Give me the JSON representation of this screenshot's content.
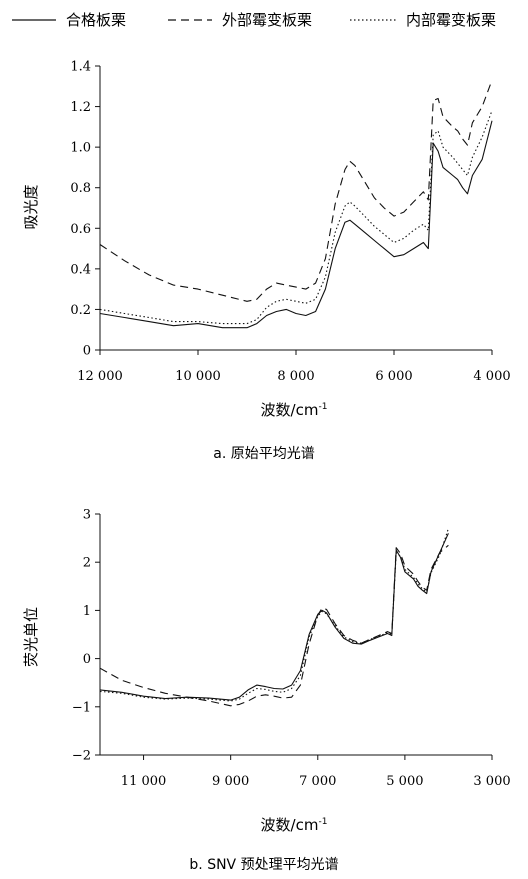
{
  "legend": {
    "items": [
      {
        "label": "合格板栗",
        "dash": "solid"
      },
      {
        "label": "外部霉变板栗",
        "dash": "dashed"
      },
      {
        "label": "内部霉变板栗",
        "dash": "dotted"
      }
    ]
  },
  "chart_data": [
    {
      "type": "line",
      "caption": "a. 原始平均光谱",
      "xlabel": "波数/cm",
      "xlabel_sup": "-1",
      "ylabel": "吸光度",
      "xlim": [
        12000,
        4000
      ],
      "ylim": [
        0,
        1.4
      ],
      "xticks": [
        12000,
        10000,
        8000,
        6000,
        4000
      ],
      "xtick_labels": [
        "12 000",
        "10 000",
        "8 000",
        "6 000",
        "4 000"
      ],
      "yticks": [
        0,
        0.2,
        0.4,
        0.6,
        0.8,
        1.0,
        1.2,
        1.4
      ],
      "ytick_labels": [
        "0",
        "0.2",
        "0.4",
        "0.6",
        "0.8",
        "1.0",
        "1.2",
        "1.4"
      ],
      "grid": false,
      "series": [
        {
          "name": "合格板栗",
          "dash": "solid",
          "x": [
            12000,
            11500,
            11000,
            10500,
            10000,
            9500,
            9000,
            8800,
            8600,
            8400,
            8200,
            8000,
            7800,
            7600,
            7400,
            7200,
            7000,
            6900,
            6800,
            6600,
            6400,
            6200,
            6000,
            5800,
            5600,
            5400,
            5300,
            5200,
            5100,
            5000,
            4800,
            4700,
            4600,
            4500,
            4400,
            4200,
            4000
          ],
          "y": [
            0.18,
            0.16,
            0.14,
            0.12,
            0.13,
            0.11,
            0.11,
            0.13,
            0.17,
            0.19,
            0.2,
            0.18,
            0.17,
            0.19,
            0.3,
            0.5,
            0.63,
            0.64,
            0.62,
            0.58,
            0.54,
            0.5,
            0.46,
            0.47,
            0.5,
            0.53,
            0.5,
            1.02,
            0.98,
            0.9,
            0.86,
            0.84,
            0.8,
            0.77,
            0.86,
            0.94,
            1.13
          ]
        },
        {
          "name": "外部霉变板栗",
          "dash": "dashed",
          "x": [
            12000,
            11500,
            11000,
            10500,
            10000,
            9500,
            9000,
            8800,
            8600,
            8400,
            8200,
            8000,
            7800,
            7600,
            7400,
            7200,
            7000,
            6900,
            6800,
            6600,
            6400,
            6200,
            6000,
            5800,
            5600,
            5400,
            5300,
            5200,
            5100,
            5000,
            4800,
            4700,
            4600,
            4500,
            4400,
            4200,
            4000
          ],
          "y": [
            0.52,
            0.44,
            0.37,
            0.32,
            0.3,
            0.27,
            0.24,
            0.25,
            0.3,
            0.33,
            0.32,
            0.31,
            0.3,
            0.33,
            0.45,
            0.72,
            0.89,
            0.93,
            0.91,
            0.83,
            0.75,
            0.7,
            0.66,
            0.68,
            0.73,
            0.78,
            0.74,
            1.23,
            1.24,
            1.15,
            1.1,
            1.08,
            1.04,
            1.01,
            1.12,
            1.2,
            1.33
          ]
        },
        {
          "name": "内部霉变板栗",
          "dash": "dotted",
          "x": [
            12000,
            11500,
            11000,
            10500,
            10000,
            9500,
            9000,
            8800,
            8600,
            8400,
            8200,
            8000,
            7800,
            7600,
            7400,
            7200,
            7000,
            6900,
            6800,
            6600,
            6400,
            6200,
            6000,
            5800,
            5600,
            5400,
            5300,
            5200,
            5100,
            5000,
            4800,
            4700,
            4600,
            4500,
            4400,
            4200,
            4000
          ],
          "y": [
            0.2,
            0.18,
            0.16,
            0.14,
            0.14,
            0.13,
            0.13,
            0.15,
            0.21,
            0.24,
            0.25,
            0.24,
            0.23,
            0.25,
            0.36,
            0.58,
            0.71,
            0.73,
            0.71,
            0.66,
            0.61,
            0.57,
            0.53,
            0.55,
            0.59,
            0.62,
            0.59,
            1.06,
            1.08,
            1.0,
            0.95,
            0.92,
            0.89,
            0.86,
            0.95,
            1.05,
            1.18
          ]
        }
      ]
    },
    {
      "type": "line",
      "caption": "b. SNV 预处理平均光谱",
      "xlabel": "波数/cm",
      "xlabel_sup": "-1",
      "ylabel": "荧光单位",
      "xlim": [
        12000,
        3000
      ],
      "ylim": [
        -2,
        3
      ],
      "xticks": [
        11000,
        9000,
        7000,
        5000,
        3000
      ],
      "xtick_labels": [
        "11 000",
        "9 000",
        "7 000",
        "5 000",
        "3 000"
      ],
      "yticks": [
        -2,
        -1,
        0,
        1,
        2,
        3
      ],
      "ytick_labels": [
        "−2",
        "−1",
        "0",
        "1",
        "2",
        "3"
      ],
      "grid": false,
      "series": [
        {
          "name": "合格板栗",
          "dash": "solid",
          "x": [
            12000,
            11500,
            11000,
            10500,
            10000,
            9500,
            9000,
            8800,
            8600,
            8400,
            8200,
            8000,
            7800,
            7600,
            7400,
            7200,
            7000,
            6900,
            6800,
            6600,
            6400,
            6200,
            6000,
            5800,
            5600,
            5400,
            5300,
            5200,
            5100,
            5000,
            4800,
            4700,
            4600,
            4500,
            4400,
            4200,
            4000
          ],
          "y": [
            -0.65,
            -0.7,
            -0.78,
            -0.83,
            -0.8,
            -0.82,
            -0.86,
            -0.8,
            -0.65,
            -0.55,
            -0.58,
            -0.62,
            -0.63,
            -0.55,
            -0.25,
            0.5,
            0.92,
            1.0,
            0.95,
            0.65,
            0.42,
            0.32,
            0.3,
            0.38,
            0.45,
            0.52,
            0.48,
            2.25,
            2.1,
            1.8,
            1.65,
            1.5,
            1.42,
            1.35,
            1.8,
            2.2,
            2.6
          ]
        },
        {
          "name": "外部霉变板栗",
          "dash": "dashed",
          "x": [
            12000,
            11500,
            11000,
            10500,
            10000,
            9500,
            9000,
            8800,
            8600,
            8400,
            8200,
            8000,
            7800,
            7600,
            7400,
            7200,
            7000,
            6900,
            6800,
            6600,
            6400,
            6200,
            6000,
            5800,
            5600,
            5400,
            5300,
            5200,
            5100,
            5000,
            4800,
            4700,
            4600,
            4500,
            4400,
            4200,
            4000
          ],
          "y": [
            -0.2,
            -0.45,
            -0.6,
            -0.72,
            -0.8,
            -0.88,
            -0.98,
            -0.95,
            -0.88,
            -0.78,
            -0.75,
            -0.78,
            -0.82,
            -0.8,
            -0.55,
            0.3,
            0.9,
            1.05,
            1.02,
            0.72,
            0.48,
            0.38,
            0.32,
            0.4,
            0.48,
            0.56,
            0.52,
            2.3,
            2.18,
            1.92,
            1.75,
            1.6,
            1.48,
            1.42,
            1.85,
            2.2,
            2.35
          ]
        },
        {
          "name": "内部霉变板栗",
          "dash": "dotted",
          "x": [
            12000,
            11500,
            11000,
            10500,
            10000,
            9500,
            9000,
            8800,
            8600,
            8400,
            8200,
            8000,
            7800,
            7600,
            7400,
            7200,
            7000,
            6900,
            6800,
            6600,
            6400,
            6200,
            6000,
            5800,
            5600,
            5400,
            5300,
            5200,
            5100,
            5000,
            4800,
            4700,
            4600,
            4500,
            4400,
            4200,
            4000
          ],
          "y": [
            -0.68,
            -0.72,
            -0.8,
            -0.84,
            -0.82,
            -0.84,
            -0.88,
            -0.84,
            -0.72,
            -0.62,
            -0.64,
            -0.68,
            -0.7,
            -0.62,
            -0.35,
            0.45,
            0.88,
            0.98,
            0.93,
            0.68,
            0.45,
            0.35,
            0.32,
            0.4,
            0.46,
            0.54,
            0.5,
            2.2,
            2.12,
            1.85,
            1.68,
            1.55,
            1.45,
            1.38,
            1.78,
            2.15,
            2.7
          ]
        }
      ]
    }
  ]
}
